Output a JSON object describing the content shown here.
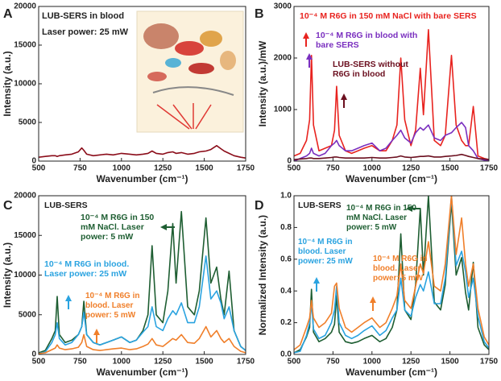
{
  "chart_data": [
    {
      "type": "line",
      "panel_label": "A",
      "annotations": [
        "LUB-SERS in blood",
        "Laser power: 25 mW"
      ],
      "x_label": "Wavenumber (cm⁻¹)",
      "y_label": "Intensity (a.u.)",
      "xlim": [
        500,
        1750
      ],
      "xticks": [
        500,
        750,
        1000,
        1250,
        1500,
        1750
      ],
      "ylim": [
        0,
        20000
      ],
      "yticks": [
        0,
        5000,
        10000,
        15000,
        20000
      ],
      "x": [
        500,
        540,
        580,
        600,
        612,
        625,
        660,
        700,
        740,
        760,
        773,
        790,
        830,
        870,
        910,
        950,
        1000,
        1050,
        1090,
        1130,
        1160,
        1185,
        1210,
        1250,
        1280,
        1310,
        1330,
        1362,
        1400,
        1440,
        1470,
        1510,
        1540,
        1575,
        1600,
        1620,
        1650,
        1680,
        1720,
        1750
      ],
      "series": [
        {
          "name": "",
          "color": "#8b0d1a",
          "values": [
            500,
            600,
            700,
            700,
            600,
            700,
            800,
            900,
            1200,
            1700,
            1400,
            900,
            700,
            800,
            900,
            800,
            1000,
            900,
            800,
            900,
            1000,
            1300,
            1000,
            900,
            1100,
            1200,
            1000,
            1100,
            900,
            1000,
            1200,
            1300,
            1500,
            2000,
            1600,
            1300,
            1000,
            700,
            500,
            400
          ]
        }
      ]
    },
    {
      "type": "line",
      "panel_label": "B",
      "annotations": [],
      "x_label": "Wavenumber (cm⁻¹)",
      "y_label": "Intensity (a.u.)/mW",
      "xlim": [
        500,
        1750
      ],
      "xticks": [
        500,
        750,
        1000,
        1250,
        1500,
        1750
      ],
      "ylim": [
        0,
        3000
      ],
      "yticks": [
        0,
        1000,
        2000,
        3000
      ],
      "x": [
        500,
        540,
        580,
        600,
        612,
        625,
        660,
        700,
        740,
        760,
        773,
        790,
        830,
        870,
        910,
        950,
        1000,
        1050,
        1090,
        1130,
        1160,
        1185,
        1210,
        1250,
        1280,
        1310,
        1330,
        1362,
        1400,
        1440,
        1470,
        1510,
        1540,
        1575,
        1600,
        1620,
        1650,
        1680,
        1720,
        1750
      ],
      "series": [
        {
          "name": "10⁻⁴ M R6G in 150 mM NaCl with bare SERS",
          "color": "#e8231f",
          "values": [
            100,
            150,
            400,
            800,
            2050,
            700,
            200,
            250,
            300,
            600,
            1450,
            500,
            200,
            150,
            200,
            250,
            300,
            200,
            200,
            400,
            700,
            2000,
            800,
            300,
            600,
            1800,
            900,
            2550,
            400,
            300,
            500,
            2050,
            700,
            400,
            300,
            300,
            1060,
            100,
            50,
            30
          ]
        },
        {
          "name": "10⁻⁴ M R6G in blood with bare SERS",
          "color": "#7a2fbf",
          "values": [
            0,
            50,
            100,
            150,
            250,
            150,
            100,
            150,
            300,
            350,
            400,
            300,
            200,
            200,
            250,
            300,
            350,
            200,
            250,
            400,
            500,
            600,
            450,
            350,
            550,
            650,
            600,
            700,
            450,
            400,
            500,
            550,
            650,
            750,
            650,
            300,
            200,
            50,
            20,
            10
          ]
        },
        {
          "name": "LUB-SERS without R6G in blood",
          "color": "#6b0f1f",
          "values": [
            30,
            40,
            50,
            60,
            60,
            50,
            50,
            60,
            70,
            80,
            80,
            70,
            60,
            60,
            60,
            60,
            70,
            60,
            60,
            70,
            80,
            100,
            80,
            70,
            80,
            90,
            90,
            100,
            80,
            80,
            90,
            100,
            110,
            130,
            110,
            90,
            70,
            50,
            40,
            30
          ]
        }
      ]
    },
    {
      "type": "line",
      "panel_label": "C",
      "annotations": [
        "LUB-SERS"
      ],
      "x_label": "Wavenumber (cm⁻¹)",
      "y_label": "Intensity (a.u.)",
      "xlim": [
        500,
        1750
      ],
      "xticks": [
        500,
        750,
        1000,
        1250,
        1500,
        1750
      ],
      "ylim": [
        0,
        20000
      ],
      "yticks": [
        0,
        5000,
        10000,
        15000,
        20000
      ],
      "x": [
        500,
        540,
        580,
        600,
        612,
        625,
        660,
        700,
        740,
        760,
        773,
        790,
        830,
        870,
        910,
        950,
        1000,
        1050,
        1090,
        1130,
        1160,
        1185,
        1210,
        1250,
        1280,
        1310,
        1330,
        1362,
        1400,
        1440,
        1470,
        1510,
        1540,
        1575,
        1600,
        1620,
        1650,
        1680,
        1720,
        1750
      ],
      "series": [
        {
          "name": "10⁻⁴ M R6G in 150 mM NaCl. Laser power: 5 mW",
          "color": "#1e5e32",
          "values": [
            200,
            500,
            2000,
            3000,
            7300,
            2500,
            1500,
            1800,
            2500,
            3500,
            6700,
            2500,
            1500,
            1200,
            1500,
            1800,
            2200,
            1500,
            1800,
            3000,
            5000,
            13700,
            5000,
            4000,
            8000,
            16500,
            9000,
            18000,
            6000,
            5000,
            8000,
            17200,
            9000,
            11000,
            7000,
            5000,
            10500,
            3000,
            1000,
            500
          ]
        },
        {
          "name": "10⁻⁴ M R6G in blood. Laser power: 25 mW",
          "color": "#2aa3e0",
          "values": [
            100,
            300,
            1500,
            2500,
            4000,
            2000,
            1200,
            1500,
            2500,
            3500,
            5300,
            2500,
            1500,
            1200,
            1500,
            1800,
            2200,
            1500,
            1800,
            2800,
            3500,
            6000,
            3500,
            3000,
            4500,
            5500,
            5000,
            6500,
            4000,
            4000,
            6000,
            12400,
            7000,
            8000,
            6500,
            4500,
            6000,
            3000,
            1000,
            500
          ]
        },
        {
          "name": "10⁻⁴ M R6G in blood. Laser power: 5 mW",
          "color": "#f07f2a",
          "values": [
            100,
            200,
            600,
            800,
            1200,
            800,
            600,
            700,
            900,
            1500,
            2500,
            1000,
            600,
            500,
            600,
            700,
            800,
            600,
            700,
            1000,
            1300,
            2000,
            1200,
            1000,
            1500,
            2000,
            1800,
            2500,
            1500,
            1400,
            2000,
            3500,
            2200,
            3000,
            2000,
            1500,
            2000,
            1000,
            400,
            200
          ]
        }
      ]
    },
    {
      "type": "line",
      "panel_label": "D",
      "annotations": [
        "LUB-SERS"
      ],
      "x_label": "Wavenumber (cm⁻¹)",
      "y_label": "Normalized Intensity (a.u.)",
      "xlim": [
        500,
        1750
      ],
      "xticks": [
        500,
        750,
        1000,
        1250,
        1500,
        1750
      ],
      "ylim": [
        0,
        1
      ],
      "yticks": [
        {
          "value": 0,
          "label": "0.0"
        },
        0.2,
        0.4,
        0.6,
        0.8,
        {
          "value": 1,
          "label": "1.0"
        }
      ],
      "x": [
        500,
        540,
        580,
        600,
        612,
        625,
        660,
        700,
        740,
        760,
        773,
        790,
        830,
        870,
        910,
        950,
        1000,
        1050,
        1090,
        1130,
        1160,
        1185,
        1210,
        1250,
        1280,
        1310,
        1330,
        1362,
        1400,
        1440,
        1470,
        1510,
        1540,
        1575,
        1600,
        1620,
        1650,
        1680,
        1720,
        1750
      ],
      "series": [
        {
          "name": "10⁻⁴ M R6G in 150 mM NaCl. Laser power: 5 mW",
          "color": "#1e5e32",
          "values": [
            0.01,
            0.03,
            0.11,
            0.17,
            0.41,
            0.14,
            0.08,
            0.1,
            0.14,
            0.19,
            0.37,
            0.14,
            0.08,
            0.07,
            0.08,
            0.1,
            0.12,
            0.08,
            0.1,
            0.17,
            0.28,
            0.76,
            0.28,
            0.22,
            0.44,
            0.92,
            0.5,
            1.0,
            0.33,
            0.28,
            0.44,
            0.96,
            0.5,
            0.61,
            0.39,
            0.28,
            0.58,
            0.17,
            0.06,
            0.03
          ]
        },
        {
          "name": "10⁻⁴ M R6G in blood. Laser power: 25 mW",
          "color": "#2aa3e0",
          "values": [
            0.01,
            0.02,
            0.12,
            0.2,
            0.32,
            0.16,
            0.1,
            0.12,
            0.2,
            0.28,
            0.43,
            0.2,
            0.12,
            0.1,
            0.12,
            0.15,
            0.18,
            0.12,
            0.15,
            0.23,
            0.28,
            0.48,
            0.28,
            0.24,
            0.36,
            0.44,
            0.4,
            0.52,
            0.32,
            0.32,
            0.48,
            1.0,
            0.56,
            0.65,
            0.52,
            0.36,
            0.48,
            0.24,
            0.08,
            0.04
          ]
        },
        {
          "name": "10⁻⁴ M R6G in blood. Laser power: 5 mW",
          "color": "#f07f2a",
          "values": [
            0.03,
            0.06,
            0.17,
            0.23,
            0.34,
            0.23,
            0.17,
            0.2,
            0.26,
            0.43,
            0.45,
            0.29,
            0.17,
            0.14,
            0.17,
            0.2,
            0.23,
            0.17,
            0.2,
            0.29,
            0.37,
            0.57,
            0.34,
            0.29,
            0.43,
            0.57,
            0.51,
            0.71,
            0.43,
            0.4,
            0.57,
            1.0,
            0.63,
            0.86,
            0.57,
            0.43,
            0.57,
            0.29,
            0.11,
            0.06
          ]
        }
      ]
    }
  ]
}
